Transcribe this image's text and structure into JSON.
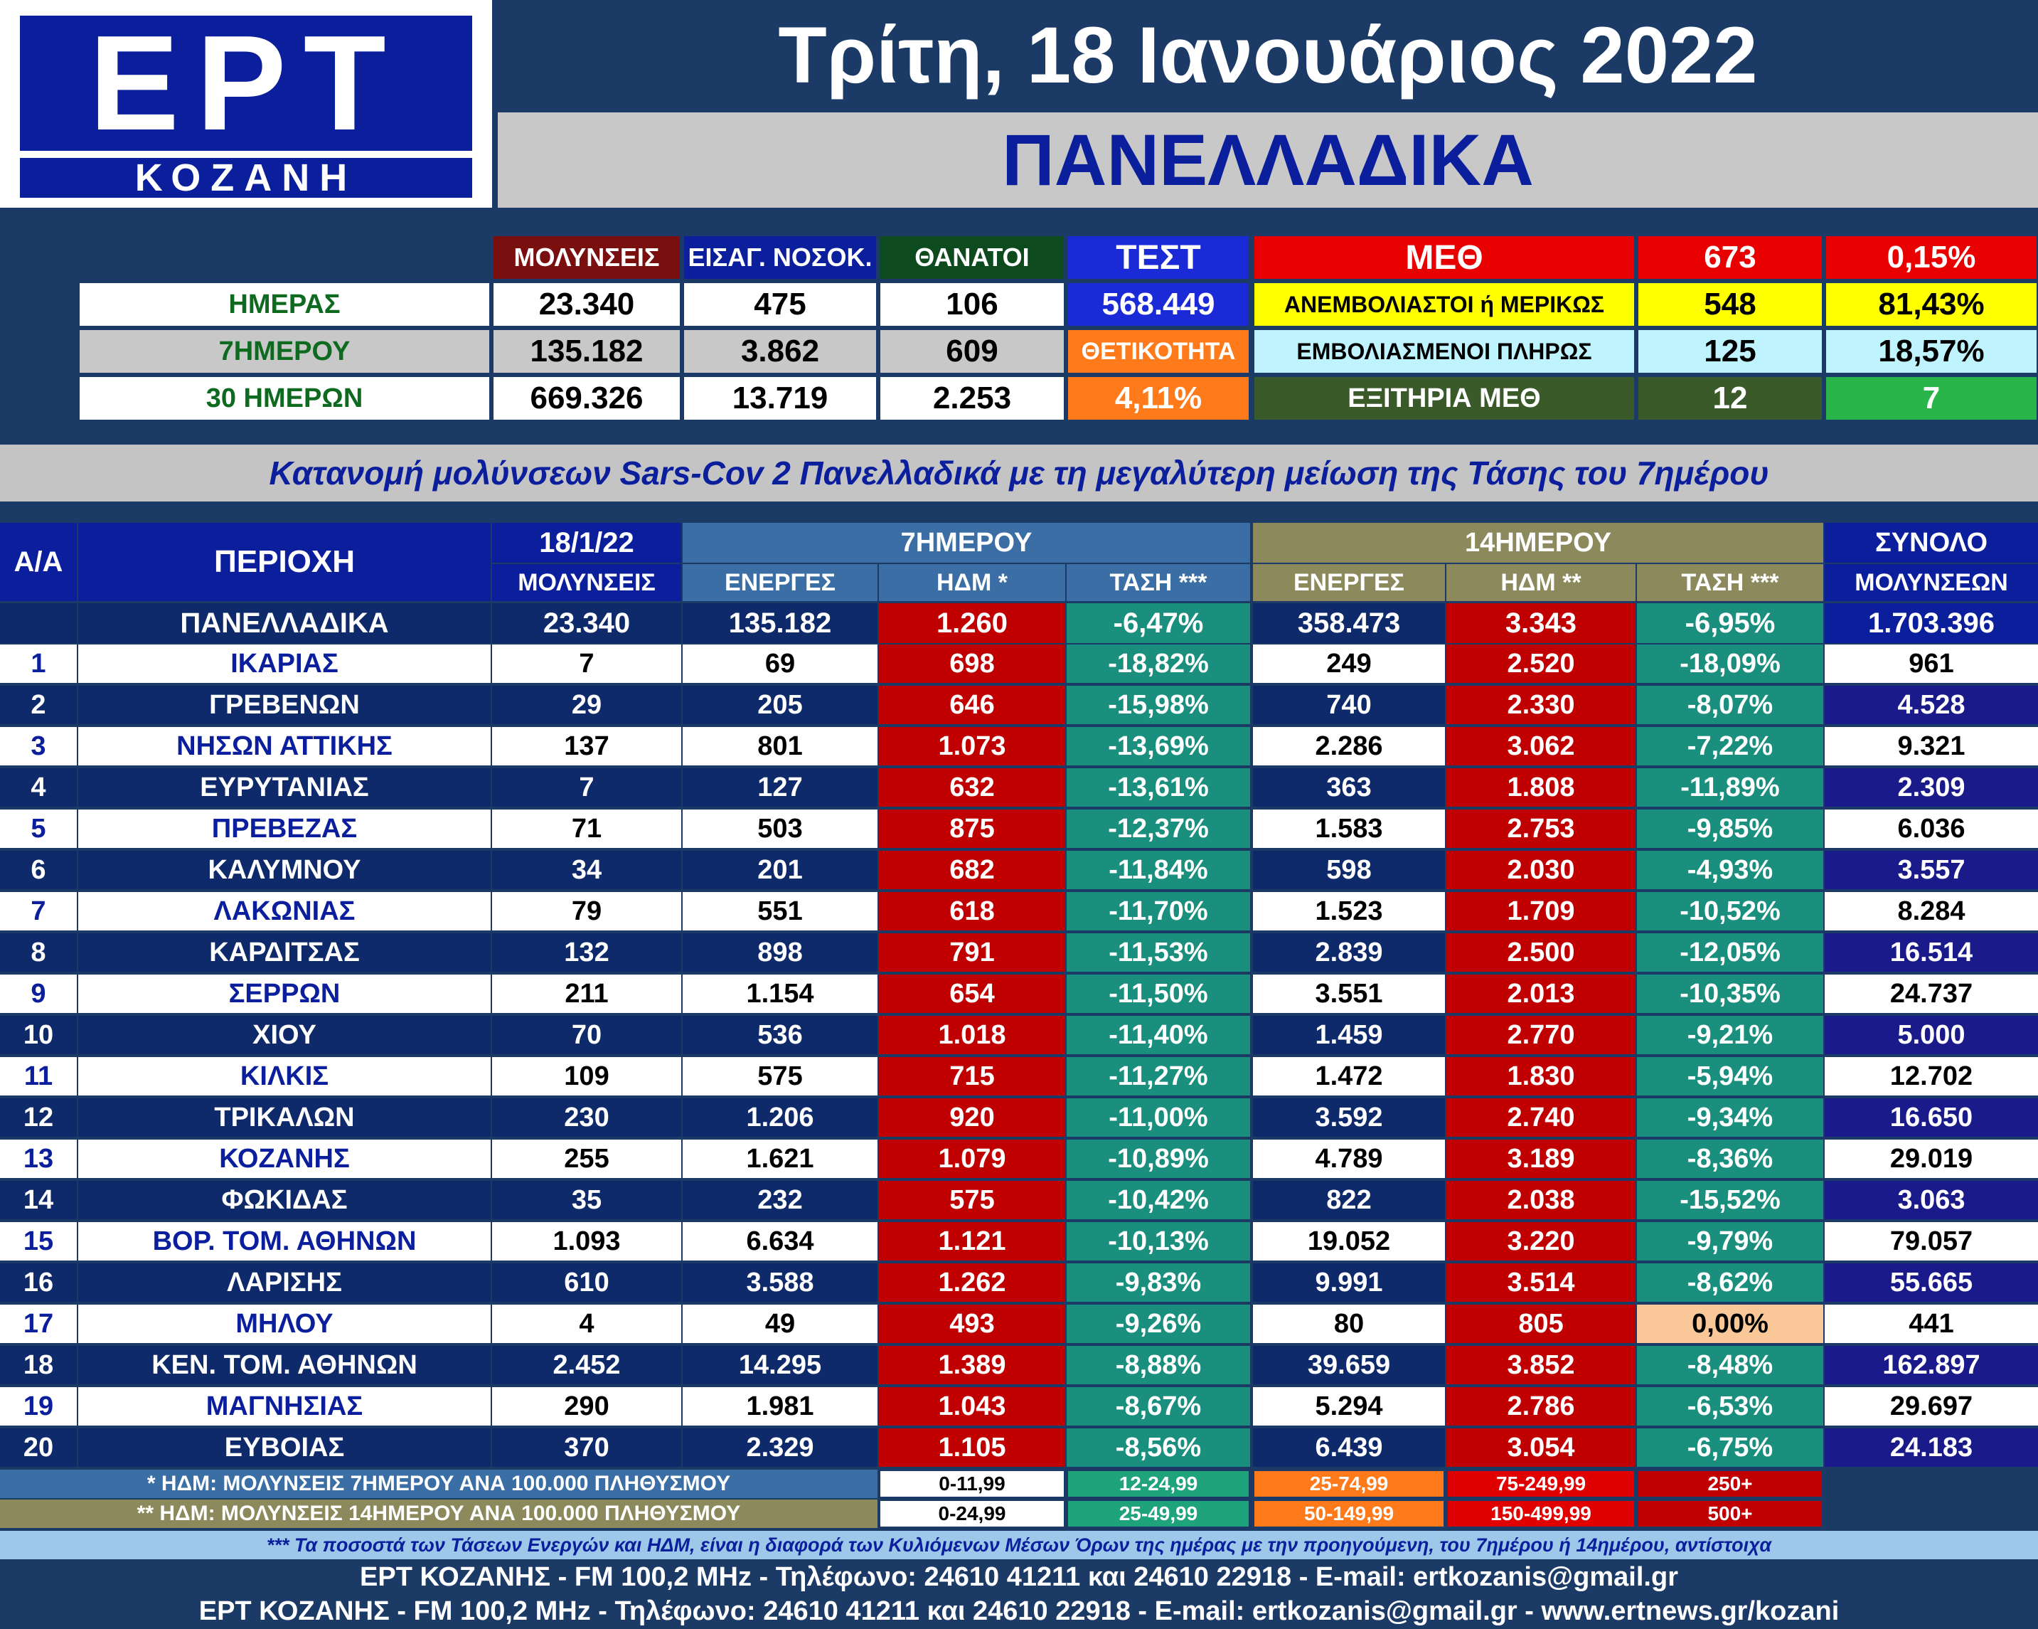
{
  "header": {
    "logo_main": "ΕΡΤ",
    "logo_sub": "ΚΟΖΑΝΗ",
    "date": "Τρίτη, 18 Ιανουάριος 2022",
    "scope": "ΠΑΝΕΛΛΑΔΙΚΑ"
  },
  "summary": {
    "col_headers": [
      "ΜΟΛΥΝΣΕΙΣ",
      "ΕΙΣΑΓ. ΝΟΣΟΚ.",
      "ΘΑΝΑΤΟΙ"
    ],
    "rows": [
      {
        "label": "ΗΜΕΡΑΣ",
        "values": [
          "23.340",
          "475",
          "106"
        ]
      },
      {
        "label": "7ΗΜΕΡΟΥ",
        "values": [
          "135.182",
          "3.862",
          "609"
        ]
      },
      {
        "label": "30 ΗΜΕΡΩΝ",
        "values": [
          "669.326",
          "13.719",
          "2.253"
        ]
      }
    ],
    "test_label": "ΤΕΣΤ",
    "test_value": "568.449",
    "positivity_label": "ΘΕΤΙΚΟΤΗΤΑ",
    "positivity_value": "4,11%",
    "icu": {
      "label": "ΜΕΘ",
      "value": "673",
      "pct": "0,15%",
      "unvacc_label": "ΑΝΕΜΒΟΛΙΑΣΤΟΙ ή ΜΕΡΙΚΩΣ",
      "unvacc_value": "548",
      "unvacc_pct": "81,43%",
      "vacc_label": "ΕΜΒΟΛΙΑΣΜΕΝΟΙ ΠΛΗΡΩΣ",
      "vacc_value": "125",
      "vacc_pct": "18,57%",
      "discharged_label": "ΕΞΙΤΗΡΙΑ ΜΕΘ",
      "discharged_value": "12",
      "discharged_extra": "7"
    }
  },
  "table": {
    "title": "Κατανομή μολύνσεων Sars-Cov 2 Πανελλαδικά με τη μεγαλύτερη μείωση της Τάσης του 7ημέρου",
    "headers": {
      "aa": "Α/Α",
      "area": "ΠΕΡΙΟΧΗ",
      "date": "18/1/22",
      "infections": "ΜΟΛΥΝΣΕΙΣ",
      "group7": "7ΗΜΕΡΟΥ",
      "group14": "14ΗΜΕΡΟΥ",
      "active": "ΕΝΕΡΓΕΣ",
      "hdm7": "ΗΔΜ *",
      "hdm14": "ΗΔΜ **",
      "trend": "ΤΑΣΗ ***",
      "total1": "ΣΥΝΟΛΟ",
      "total2": "ΜΟΛΥΝΣΕΩΝ"
    },
    "national": {
      "label": "ΠΑΝΕΛΛΑΔΙΚΑ",
      "inf": "23.340",
      "a7": "135.182",
      "h7": "1.260",
      "t7": "-6,47%",
      "a14": "358.473",
      "h14": "3.343",
      "t14": "-6,95%",
      "total": "1.703.396"
    },
    "rows": [
      {
        "n": "1",
        "area": "ΙΚΑΡΙΑΣ",
        "inf": "7",
        "a7": "69",
        "h7": "698",
        "t7": "-18,82%",
        "a14": "249",
        "h14": "2.520",
        "t14": "-18,09%",
        "total": "961"
      },
      {
        "n": "2",
        "area": "ΓΡΕΒΕΝΩΝ",
        "inf": "29",
        "a7": "205",
        "h7": "646",
        "t7": "-15,98%",
        "a14": "740",
        "h14": "2.330",
        "t14": "-8,07%",
        "total": "4.528"
      },
      {
        "n": "3",
        "area": "ΝΗΣΩΝ ΑΤΤΙΚΗΣ",
        "inf": "137",
        "a7": "801",
        "h7": "1.073",
        "t7": "-13,69%",
        "a14": "2.286",
        "h14": "3.062",
        "t14": "-7,22%",
        "total": "9.321"
      },
      {
        "n": "4",
        "area": "ΕΥΡΥΤΑΝΙΑΣ",
        "inf": "7",
        "a7": "127",
        "h7": "632",
        "t7": "-13,61%",
        "a14": "363",
        "h14": "1.808",
        "t14": "-11,89%",
        "total": "2.309"
      },
      {
        "n": "5",
        "area": "ΠΡΕΒΕΖΑΣ",
        "inf": "71",
        "a7": "503",
        "h7": "875",
        "t7": "-12,37%",
        "a14": "1.583",
        "h14": "2.753",
        "t14": "-9,85%",
        "total": "6.036"
      },
      {
        "n": "6",
        "area": "ΚΑΛΥΜΝΟΥ",
        "inf": "34",
        "a7": "201",
        "h7": "682",
        "t7": "-11,84%",
        "a14": "598",
        "h14": "2.030",
        "t14": "-4,93%",
        "total": "3.557"
      },
      {
        "n": "7",
        "area": "ΛΑΚΩΝΙΑΣ",
        "inf": "79",
        "a7": "551",
        "h7": "618",
        "t7": "-11,70%",
        "a14": "1.523",
        "h14": "1.709",
        "t14": "-10,52%",
        "total": "8.284"
      },
      {
        "n": "8",
        "area": "ΚΑΡΔΙΤΣΑΣ",
        "inf": "132",
        "a7": "898",
        "h7": "791",
        "t7": "-11,53%",
        "a14": "2.839",
        "h14": "2.500",
        "t14": "-12,05%",
        "total": "16.514"
      },
      {
        "n": "9",
        "area": "ΣΕΡΡΩΝ",
        "inf": "211",
        "a7": "1.154",
        "h7": "654",
        "t7": "-11,50%",
        "a14": "3.551",
        "h14": "2.013",
        "t14": "-10,35%",
        "total": "24.737"
      },
      {
        "n": "10",
        "area": "ΧΙΟΥ",
        "inf": "70",
        "a7": "536",
        "h7": "1.018",
        "t7": "-11,40%",
        "a14": "1.459",
        "h14": "2.770",
        "t14": "-9,21%",
        "total": "5.000"
      },
      {
        "n": "11",
        "area": "ΚΙΛΚΙΣ",
        "inf": "109",
        "a7": "575",
        "h7": "715",
        "t7": "-11,27%",
        "a14": "1.472",
        "h14": "1.830",
        "t14": "-5,94%",
        "total": "12.702"
      },
      {
        "n": "12",
        "area": "ΤΡΙΚΑΛΩΝ",
        "inf": "230",
        "a7": "1.206",
        "h7": "920",
        "t7": "-11,00%",
        "a14": "3.592",
        "h14": "2.740",
        "t14": "-9,34%",
        "total": "16.650"
      },
      {
        "n": "13",
        "area": "ΚΟΖΑΝΗΣ",
        "inf": "255",
        "a7": "1.621",
        "h7": "1.079",
        "t7": "-10,89%",
        "a14": "4.789",
        "h14": "3.189",
        "t14": "-8,36%",
        "total": "29.019"
      },
      {
        "n": "14",
        "area": "ΦΩΚΙΔΑΣ",
        "inf": "35",
        "a7": "232",
        "h7": "575",
        "t7": "-10,42%",
        "a14": "822",
        "h14": "2.038",
        "t14": "-15,52%",
        "total": "3.063"
      },
      {
        "n": "15",
        "area": "ΒΟΡ. ΤΟΜ. ΑΘΗΝΩΝ",
        "inf": "1.093",
        "a7": "6.634",
        "h7": "1.121",
        "t7": "-10,13%",
        "a14": "19.052",
        "h14": "3.220",
        "t14": "-9,79%",
        "total": "79.057"
      },
      {
        "n": "16",
        "area": "ΛΑΡΙΣΗΣ",
        "inf": "610",
        "a7": "3.588",
        "h7": "1.262",
        "t7": "-9,83%",
        "a14": "9.991",
        "h14": "3.514",
        "t14": "-8,62%",
        "total": "55.665"
      },
      {
        "n": "17",
        "area": "ΜΗΛΟΥ",
        "inf": "4",
        "a7": "49",
        "h7": "493",
        "t7": "-9,26%",
        "a14": "80",
        "h14": "805",
        "t14": "0,00%",
        "total": "441"
      },
      {
        "n": "18",
        "area": "ΚΕΝ. ΤΟΜ. ΑΘΗΝΩΝ",
        "inf": "2.452",
        "a7": "14.295",
        "h7": "1.389",
        "t7": "-8,88%",
        "a14": "39.659",
        "h14": "3.852",
        "t14": "-8,48%",
        "total": "162.897"
      },
      {
        "n": "19",
        "area": "ΜΑΓΝΗΣΙΑΣ",
        "inf": "290",
        "a7": "1.981",
        "h7": "1.043",
        "t7": "-8,67%",
        "a14": "5.294",
        "h14": "2.786",
        "t14": "-6,53%",
        "total": "29.697"
      },
      {
        "n": "20",
        "area": "ΕΥΒΟΙΑΣ",
        "inf": "370",
        "a7": "2.329",
        "h7": "1.105",
        "t7": "-8,56%",
        "a14": "6.439",
        "h14": "3.054",
        "t14": "-6,75%",
        "total": "24.183"
      }
    ]
  },
  "legend": {
    "note7": "* ΗΔΜ: ΜΟΛΥΝΣΕΙΣ 7ΗΜΕΡΟΥ ΑΝΑ 100.000 ΠΛΗΘΥΣΜΟΥ",
    "note14": "** ΗΔΜ: ΜΟΛΥΝΣΕΙΣ 14ΗΜΕΡΟΥ ΑΝΑ 100.000 ΠΛΗΘΥΣΜΟΥ",
    "ranges7": [
      "0-11,99",
      "12-24,99",
      "25-74,99",
      "75-249,99",
      "250+"
    ],
    "ranges14": [
      "0-24,99",
      "25-49,99",
      "50-149,99",
      "150-499,99",
      "500+"
    ],
    "colors": [
      "#ffffff",
      "#1fa37a",
      "#ff7a1a",
      "#d40000",
      "#c00000"
    ]
  },
  "footer": {
    "note": "*** Τα ποσοστά των Τάσεων Ενεργών και ΗΔΜ, είναι η διαφορά των Κυλιόμενων Μέσων Όρων της ημέρας με την προηγούμενη, του 7ημέρου ή 14ημέρου, αντίστοιχα",
    "line1": "ΕΡΤ ΚΟΖΑΝΗΣ - FM 100,2 MHz - Τηλέφωνο:  24610 41211 και 24610 22918 - E-mail: ertkozanis@gmail.gr",
    "line2": "ΕΡΤ ΚΟΖΑΝΗΣ - FM 100,2 MHz - Τηλέφωνο:  24610 41211 και 24610 22918 - E-mail: ertkozanis@gmail.gr - www.ertnews.gr/kozani"
  },
  "colors": {
    "navy": "#1b3a66",
    "blue": "#0b1f9c",
    "red": "#d40000",
    "teal": "#1a8f7e",
    "dark_navy": "#0f2a6b",
    "olive": "#8c8a5c",
    "peach": "#fac898"
  }
}
